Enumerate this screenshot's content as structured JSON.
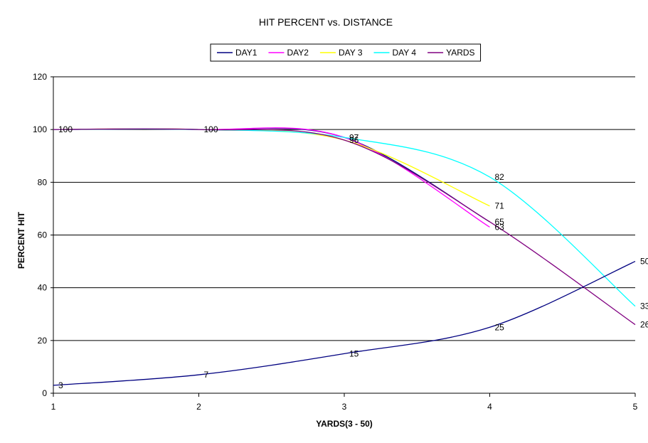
{
  "chart_data": {
    "type": "line",
    "title": "HIT PERCENT vs. DISTANCE",
    "xlabel": "YARDS(3 - 50)",
    "ylabel": "PERCENT HIT",
    "xlim": [
      1,
      5
    ],
    "ylim": [
      0,
      120
    ],
    "x_ticks": [
      "1",
      "2",
      "3",
      "4",
      "5"
    ],
    "y_ticks": [
      "0",
      "20",
      "40",
      "60",
      "80",
      "100",
      "120"
    ],
    "grid": "horizontal",
    "legend_position": "top",
    "series": [
      {
        "name": "DAY1",
        "color": "#000080",
        "x": [
          1,
          2,
          3,
          4
        ],
        "values": [
          100,
          100,
          97,
          65
        ],
        "labels": [
          "",
          "",
          "",
          ""
        ]
      },
      {
        "name": "DAY2",
        "color": "#ff00ff",
        "x": [
          1,
          2,
          3,
          4
        ],
        "values": [
          100,
          100,
          97,
          63
        ],
        "labels": [
          "",
          "",
          "",
          "63"
        ]
      },
      {
        "name": "DAY 3",
        "color": "#ffff00",
        "x": [
          1,
          2,
          3,
          4
        ],
        "values": [
          100,
          100,
          96,
          71
        ],
        "labels": [
          "",
          "",
          "96",
          "71"
        ]
      },
      {
        "name": "DAY 4",
        "color": "#00ffff",
        "x": [
          1,
          2,
          3,
          4,
          5
        ],
        "values": [
          100,
          100,
          97,
          82,
          33
        ],
        "labels": [
          "",
          "100",
          "97",
          "82",
          "33"
        ]
      },
      {
        "name": "YARDS",
        "color": "#800080",
        "x": [
          1,
          2,
          3,
          4,
          5
        ],
        "values": [
          100,
          100,
          96,
          65,
          26
        ],
        "labels": [
          "100",
          "",
          "",
          "65",
          "26"
        ]
      },
      {
        "name": "",
        "color": "#000080",
        "x": [
          1,
          2,
          3,
          4,
          5
        ],
        "values": [
          3,
          7,
          15,
          25,
          50
        ],
        "labels": [
          "3",
          "7",
          "15",
          "25",
          "50"
        ]
      }
    ]
  }
}
